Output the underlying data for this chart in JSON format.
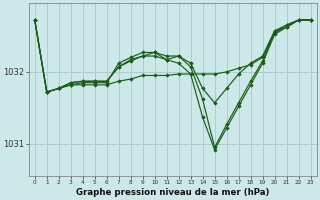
{
  "title": "Graphe pression niveau de la mer (hPa)",
  "bg_color": "#cce8e8",
  "grid_color": "#aacfcf",
  "line_color": "#1a5c1a",
  "marker_color": "#1a5c1a",
  "xlim_min": -0.5,
  "xlim_max": 23.5,
  "ylim_min": 1030.55,
  "ylim_max": 1032.95,
  "yticks": [
    1031,
    1032
  ],
  "xticks": [
    0,
    1,
    2,
    3,
    4,
    5,
    6,
    7,
    8,
    9,
    10,
    11,
    12,
    13,
    14,
    15,
    16,
    17,
    18,
    19,
    20,
    21,
    22,
    23
  ],
  "series": [
    [
      1032.72,
      1031.72,
      1031.77,
      1031.82,
      1031.82,
      1031.82,
      1031.82,
      1031.87,
      1031.9,
      1031.95,
      1031.95,
      1031.95,
      1031.97,
      1031.97,
      1031.97,
      1031.97,
      1032.0,
      1032.05,
      1032.1,
      1032.2,
      1032.55,
      1032.65,
      1032.72,
      1032.72
    ],
    [
      1032.72,
      1031.72,
      1031.77,
      1031.85,
      1031.87,
      1031.87,
      1031.87,
      1032.07,
      1032.17,
      1032.22,
      1032.22,
      1032.17,
      1032.22,
      1032.12,
      1031.77,
      1031.57,
      1031.77,
      1031.97,
      1032.12,
      1032.22,
      1032.57,
      1032.65,
      1032.72,
      1032.72
    ],
    [
      1032.72,
      1031.72,
      1031.77,
      1031.82,
      1031.85,
      1031.85,
      1031.85,
      1032.12,
      1032.2,
      1032.27,
      1032.27,
      1032.17,
      1032.12,
      1031.97,
      1031.37,
      1030.92,
      1031.22,
      1031.52,
      1031.82,
      1032.12,
      1032.52,
      1032.62,
      1032.72,
      1032.72
    ],
    [
      1032.72,
      1031.72,
      1031.77,
      1031.85,
      1031.87,
      1031.87,
      1031.87,
      1032.07,
      1032.15,
      1032.22,
      1032.27,
      1032.22,
      1032.22,
      1032.07,
      1031.62,
      1030.95,
      1031.27,
      1031.57,
      1031.87,
      1032.15,
      1032.55,
      1032.62,
      1032.72,
      1032.72
    ]
  ]
}
